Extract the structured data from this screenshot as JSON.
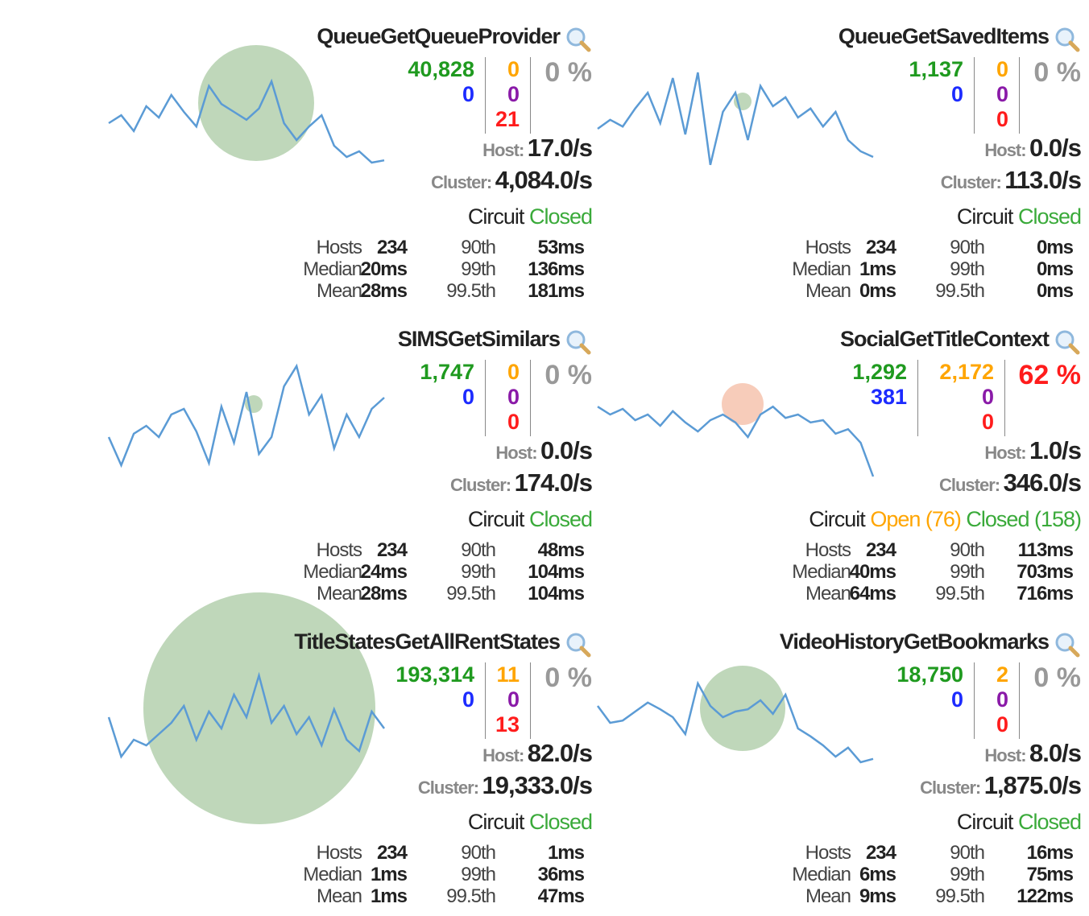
{
  "cards": [
    {
      "title": "QueueGetQueueProvider",
      "success": "40,828",
      "short_circuited": "0",
      "timeout": "0",
      "rejected": "0",
      "failure": "21",
      "error_pct": "0 %",
      "error_color": "#999999",
      "host_label": "Host:",
      "host_rate": "17.0/s",
      "cluster_label": "Cluster:",
      "cluster_rate": "4,084.0/s",
      "circuit_label": "Circuit",
      "circuit_state": "Closed",
      "circuit_extra": "",
      "hosts_label": "Hosts",
      "hosts": "234",
      "median_label": "Median",
      "median": "20ms",
      "mean_label": "Mean",
      "mean": "28ms",
      "p90_label": "90th",
      "p90": "53ms",
      "p99_label": "99th",
      "p99": "136ms",
      "p995_label": "99.5th",
      "p995": "181ms",
      "circle_color": "#b8d3b3",
      "spark": [
        0.45,
        0.52,
        0.38,
        0.6,
        0.5,
        0.7,
        0.55,
        0.42,
        0.78,
        0.62,
        0.55,
        0.48,
        0.58,
        0.82,
        0.45,
        0.3,
        0.42,
        0.52,
        0.25,
        0.15,
        0.2,
        0.1,
        0.12
      ]
    },
    {
      "title": "QueueGetSavedItems",
      "success": "1,137",
      "short_circuited": "0",
      "timeout": "0",
      "rejected": "0",
      "failure": "0",
      "error_pct": "0 %",
      "error_color": "#999999",
      "host_label": "Host:",
      "host_rate": "0.0/s",
      "cluster_label": "Cluster:",
      "cluster_rate": "113.0/s",
      "circuit_label": "Circuit",
      "circuit_state": "Closed",
      "circuit_extra": "",
      "hosts_label": "Hosts",
      "hosts": "234",
      "median_label": "Median",
      "median": "1ms",
      "mean_label": "Mean",
      "mean": "0ms",
      "p90_label": "90th",
      "p90": "0ms",
      "p99_label": "99th",
      "p99": "0ms",
      "p995_label": "99.5th",
      "p995": "0ms",
      "circle_color": "#b8d3b3",
      "spark": [
        0.4,
        0.48,
        0.42,
        0.58,
        0.72,
        0.45,
        0.85,
        0.35,
        0.9,
        0.08,
        0.55,
        0.72,
        0.3,
        0.78,
        0.6,
        0.68,
        0.5,
        0.58,
        0.42,
        0.55,
        0.3,
        0.2,
        0.15
      ]
    },
    {
      "title": "SIMSGetSimilars",
      "success": "1,747",
      "short_circuited": "0",
      "timeout": "0",
      "rejected": "0",
      "failure": "0",
      "error_pct": "0 %",
      "error_color": "#999999",
      "host_label": "Host:",
      "host_rate": "0.0/s",
      "cluster_label": "Cluster:",
      "cluster_rate": "174.0/s",
      "circuit_label": "Circuit",
      "circuit_state": "Closed",
      "circuit_extra": "",
      "hosts_label": "Hosts",
      "hosts": "234",
      "median_label": "Median",
      "median": "24ms",
      "mean_label": "Mean",
      "mean": "28ms",
      "p90_label": "90th",
      "p90": "48ms",
      "p99_label": "99th",
      "p99": "104ms",
      "p995_label": "99.5th",
      "p995": "104ms",
      "circle_color": "#b8d3b3",
      "spark": [
        0.35,
        0.1,
        0.38,
        0.45,
        0.35,
        0.55,
        0.6,
        0.4,
        0.12,
        0.62,
        0.3,
        0.75,
        0.2,
        0.35,
        0.8,
        0.98,
        0.55,
        0.72,
        0.25,
        0.55,
        0.35,
        0.6,
        0.7
      ]
    },
    {
      "title": "SocialGetTitleContext",
      "success": "1,292",
      "short_circuited": "381",
      "timeout": "2,172",
      "rejected": "0",
      "failure": "0",
      "error_pct": "62 %",
      "error_color": "#ff1c1c",
      "host_label": "Host:",
      "host_rate": "1.0/s",
      "cluster_label": "Cluster:",
      "cluster_rate": "346.0/s",
      "circuit_label": "Circuit",
      "circuit_state": "Open (76)",
      "circuit_extra": "Closed (158)",
      "hosts_label": "Hosts",
      "hosts": "234",
      "median_label": "Median",
      "median": "40ms",
      "mean_label": "Mean",
      "mean": "64ms",
      "p90_label": "90th",
      "p90": "113ms",
      "p99_label": "99th",
      "p99": "703ms",
      "p995_label": "99.5th",
      "p995": "716ms",
      "circle_color": "#f6c6b3",
      "spark": [
        0.62,
        0.55,
        0.6,
        0.5,
        0.55,
        0.45,
        0.58,
        0.48,
        0.4,
        0.5,
        0.55,
        0.48,
        0.35,
        0.55,
        0.62,
        0.52,
        0.55,
        0.48,
        0.5,
        0.38,
        0.42,
        0.3,
        0.0
      ]
    },
    {
      "title": "TitleStatesGetAllRentStates",
      "success": "193,314",
      "short_circuited": "0",
      "timeout": "11",
      "rejected": "0",
      "failure": "13",
      "error_pct": "0 %",
      "error_color": "#999999",
      "host_label": "Host:",
      "host_rate": "82.0/s",
      "cluster_label": "Cluster:",
      "cluster_rate": "19,333.0/s",
      "circuit_label": "Circuit",
      "circuit_state": "Closed",
      "circuit_extra": "",
      "hosts_label": "Hosts",
      "hosts": "234",
      "median_label": "Median",
      "median": "1ms",
      "mean_label": "Mean",
      "mean": "1ms",
      "p90_label": "90th",
      "p90": "1ms",
      "p99_label": "99th",
      "p99": "36ms",
      "p995_label": "99.5th",
      "p995": "47ms",
      "circle_color": "#b8d3b3",
      "spark": [
        0.55,
        0.2,
        0.35,
        0.3,
        0.4,
        0.5,
        0.65,
        0.35,
        0.6,
        0.45,
        0.75,
        0.55,
        0.92,
        0.5,
        0.65,
        0.4,
        0.55,
        0.3,
        0.62,
        0.35,
        0.25,
        0.6,
        0.45
      ]
    },
    {
      "title": "VideoHistoryGetBookmarks",
      "success": "18,750",
      "short_circuited": "0",
      "timeout": "2",
      "rejected": "0",
      "failure": "0",
      "error_pct": "0 %",
      "error_color": "#999999",
      "host_label": "Host:",
      "host_rate": "8.0/s",
      "cluster_label": "Cluster:",
      "cluster_rate": "1,875.0/s",
      "circuit_label": "Circuit",
      "circuit_state": "Closed",
      "circuit_extra": "",
      "hosts_label": "Hosts",
      "hosts": "234",
      "median_label": "Median",
      "median": "6ms",
      "mean_label": "Mean",
      "mean": "9ms",
      "p90_label": "90th",
      "p90": "16ms",
      "p99_label": "99th",
      "p99": "75ms",
      "p995_label": "99.5th",
      "p995": "122ms",
      "circle_color": "#b8d3b3",
      "spark": [
        0.65,
        0.5,
        0.52,
        0.6,
        0.68,
        0.62,
        0.55,
        0.4,
        0.85,
        0.65,
        0.55,
        0.6,
        0.62,
        0.7,
        0.58,
        0.75,
        0.45,
        0.38,
        0.3,
        0.2,
        0.28,
        0.15,
        0.18
      ]
    }
  ]
}
